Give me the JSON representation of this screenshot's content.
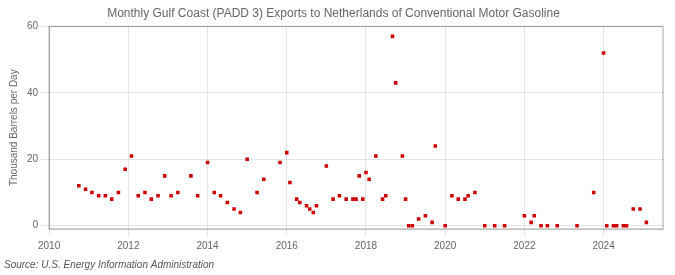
{
  "chart_data": {
    "type": "scatter",
    "title": "Monthly Gulf Coast (PADD 3) Exports to Netherlands of Conventional Motor Gasoline",
    "y_label": "Thousand Barrels per Day",
    "annotations": [
      "Source: U.S. Energy Information Administration"
    ],
    "color": "#cc0000",
    "marker": "square",
    "grid": true,
    "xlim": [
      2010,
      2025.5
    ],
    "ylim": [
      -1,
      60
    ],
    "xticks": [
      2010,
      2012,
      2014,
      2016,
      2018,
      2020,
      2022,
      2024
    ],
    "yticks": [
      0,
      20,
      40,
      60
    ],
    "x": [
      2010.75,
      2010.92,
      2011.08,
      2011.25,
      2011.42,
      2011.58,
      2011.75,
      2011.92,
      2012.08,
      2012.25,
      2012.42,
      2012.58,
      2012.75,
      2012.92,
      2013.08,
      2013.25,
      2013.58,
      2013.75,
      2014.0,
      2014.17,
      2014.33,
      2014.5,
      2014.67,
      2014.83,
      2015.0,
      2015.25,
      2015.42,
      2015.83,
      2016.0,
      2016.08,
      2016.25,
      2016.33,
      2016.5,
      2016.58,
      2016.67,
      2016.75,
      2017.0,
      2017.17,
      2017.33,
      2017.5,
      2017.67,
      2017.75,
      2017.83,
      2017.92,
      2018.0,
      2018.08,
      2018.25,
      2018.42,
      2018.5,
      2018.67,
      2018.75,
      2018.92,
      2019.0,
      2019.08,
      2019.17,
      2019.33,
      2019.5,
      2019.67,
      2019.75,
      2020.0,
      2020.17,
      2020.33,
      2020.5,
      2020.58,
      2020.75,
      2021.0,
      2021.25,
      2021.5,
      2022.0,
      2022.17,
      2022.25,
      2022.42,
      2022.58,
      2022.83,
      2023.33,
      2023.75,
      2024.0,
      2024.08,
      2024.25,
      2024.33,
      2024.5,
      2024.58,
      2024.75,
      2024.92,
      2025.08
    ],
    "values": [
      12,
      11,
      10,
      9,
      9,
      8,
      10,
      17,
      21,
      9,
      10,
      8,
      9,
      15,
      9,
      10,
      15,
      9,
      19,
      10,
      9,
      7,
      5,
      4,
      20,
      10,
      14,
      19,
      22,
      13,
      8,
      7,
      6,
      5,
      4,
      6,
      18,
      8,
      9,
      8,
      8,
      8,
      15,
      8,
      16,
      14,
      21,
      8,
      9,
      57,
      43,
      21,
      8,
      0,
      0,
      2,
      3,
      1,
      24,
      0,
      9,
      8,
      8,
      9,
      10,
      0,
      0,
      0,
      3,
      1,
      3,
      0,
      0,
      0,
      0,
      10,
      52,
      0,
      0,
      0,
      0,
      0,
      5,
      5,
      1
    ]
  }
}
